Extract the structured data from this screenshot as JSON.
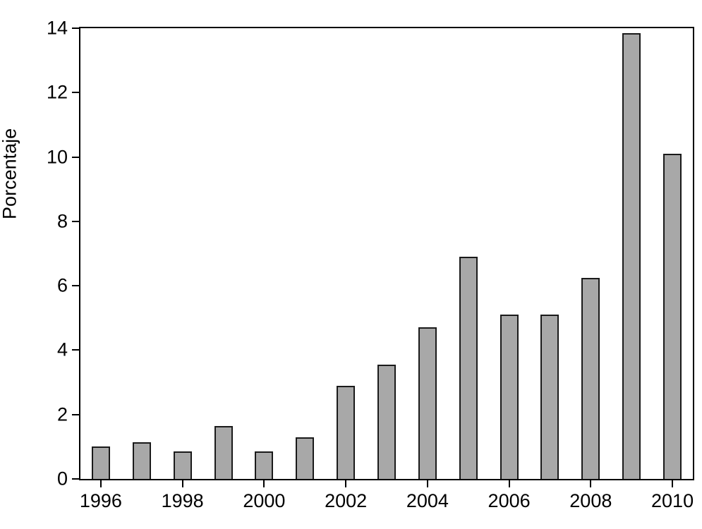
{
  "chart_data": {
    "type": "bar",
    "title": "",
    "xlabel": "",
    "ylabel": "Porcentaje",
    "x": [
      1996,
      1997,
      1998,
      1999,
      2000,
      2001,
      2002,
      2003,
      2004,
      2005,
      2006,
      2007,
      2008,
      2009,
      2010
    ],
    "values": [
      1.0,
      1.15,
      0.85,
      1.65,
      0.85,
      1.3,
      2.9,
      3.55,
      4.7,
      6.9,
      5.1,
      5.1,
      6.25,
      13.85,
      10.1
    ],
    "ylim": [
      0,
      14
    ],
    "yticks": [
      0,
      2,
      4,
      6,
      8,
      10,
      12,
      14
    ],
    "xtick_labels": [
      1996,
      1998,
      2000,
      2002,
      2004,
      2006,
      2008,
      2010
    ],
    "grid": false,
    "legend": "none",
    "bar_fill_color": "#a8a8a8",
    "bar_border_color": "#1a1a1a",
    "frame": "full-box"
  }
}
